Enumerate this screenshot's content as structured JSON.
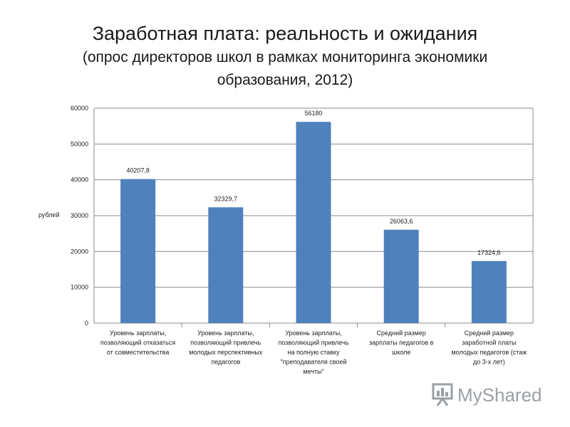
{
  "title": "Заработная плата: реальность и ожидания",
  "subtitle_line1": "(опрос директоров школ в рамках мониторинга экономики",
  "subtitle_line2": "образования, 2012)",
  "chart_data": {
    "type": "bar",
    "ylabel": "рублей",
    "ylim": [
      0,
      60000
    ],
    "yticks": [
      0,
      10000,
      20000,
      30000,
      40000,
      50000,
      60000
    ],
    "grid": true,
    "bar_color": "#4f81bd",
    "categories": [
      [
        "Уровень зарплаты,",
        "позволяющий отказаться",
        "от совместительства"
      ],
      [
        "Уровень зарплаты,",
        "позволяющий привлечь",
        "молодых перспективных",
        "педагогов"
      ],
      [
        "Уровень зарплаты,",
        "позволяющий привлечь",
        "на полную ставку",
        "\"преподавателя своей",
        "мечты\""
      ],
      [
        "Средний размер",
        "зарплаты педагогов в",
        "школе"
      ],
      [
        "Средний размер",
        "заработной платы",
        "молодых педагогов (стаж",
        "до 3-х лет)"
      ]
    ],
    "values": [
      40207.8,
      32329.7,
      56180,
      26063.6,
      17324.6
    ],
    "data_labels": [
      "40207,8",
      "32329,7",
      "56180",
      "26063,6",
      "17324,6"
    ]
  },
  "watermark": {
    "text": "MyShared",
    "icon": "presentation-board-icon",
    "color": "#9aa0a6"
  }
}
